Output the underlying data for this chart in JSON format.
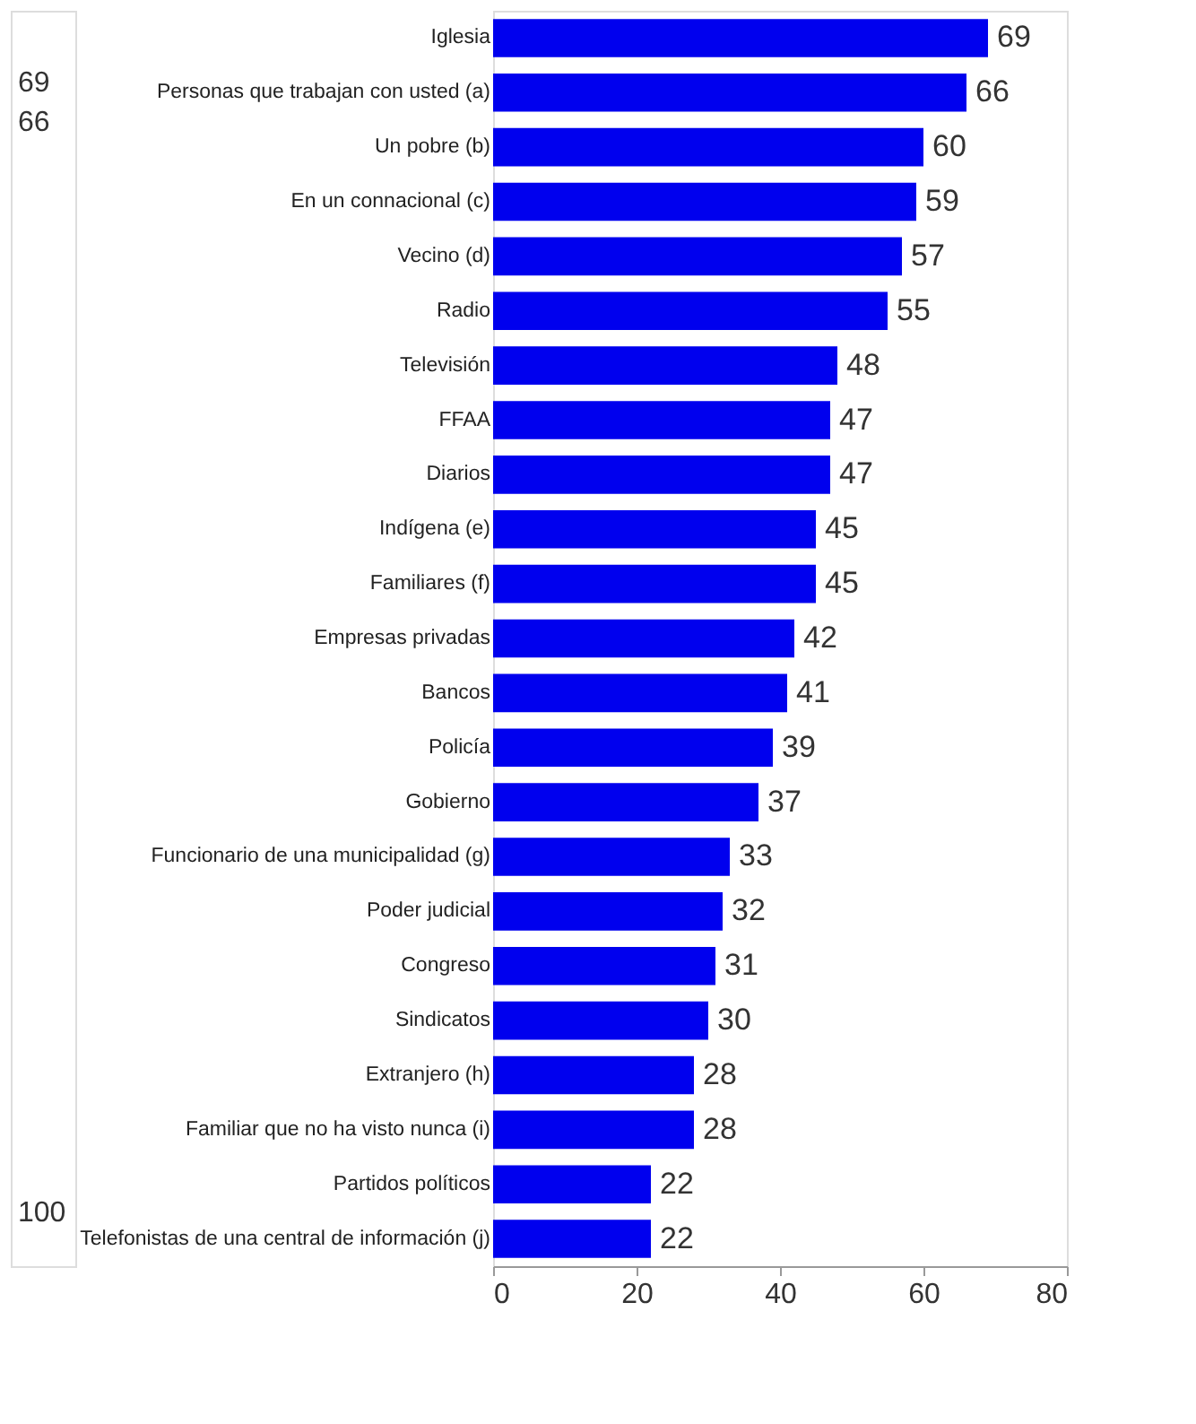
{
  "chart_data": {
    "type": "bar",
    "orientation": "horizontal",
    "categories": [
      "Iglesia",
      "Personas que trabajan con usted (a)",
      "Un pobre (b)",
      "En un connacional (c)",
      "Vecino (d)",
      "Radio",
      "Televisión",
      "FFAA",
      "Diarios",
      "Indígena (e)",
      "Familiares (f)",
      "Empresas privadas",
      "Bancos",
      "Policía",
      "Gobierno",
      "Funcionario de una municipalidad (g)",
      "Poder judicial",
      "Congreso",
      "Sindicatos",
      "Extranjero (h)",
      "Familiar que no ha visto nunca (i)",
      "Partidos políticos",
      "Telefonistas de una central de información (j)"
    ],
    "values": [
      69,
      66,
      60,
      59,
      57,
      55,
      48,
      47,
      47,
      45,
      45,
      42,
      41,
      39,
      37,
      33,
      32,
      31,
      30,
      28,
      28,
      22,
      22
    ],
    "color": "#0000ee",
    "data_labels": true,
    "xlim": [
      0,
      80
    ],
    "xticks": [
      0,
      20,
      40,
      60,
      80
    ],
    "grid": false,
    "annotations": [
      "69",
      "66",
      "100"
    ]
  }
}
